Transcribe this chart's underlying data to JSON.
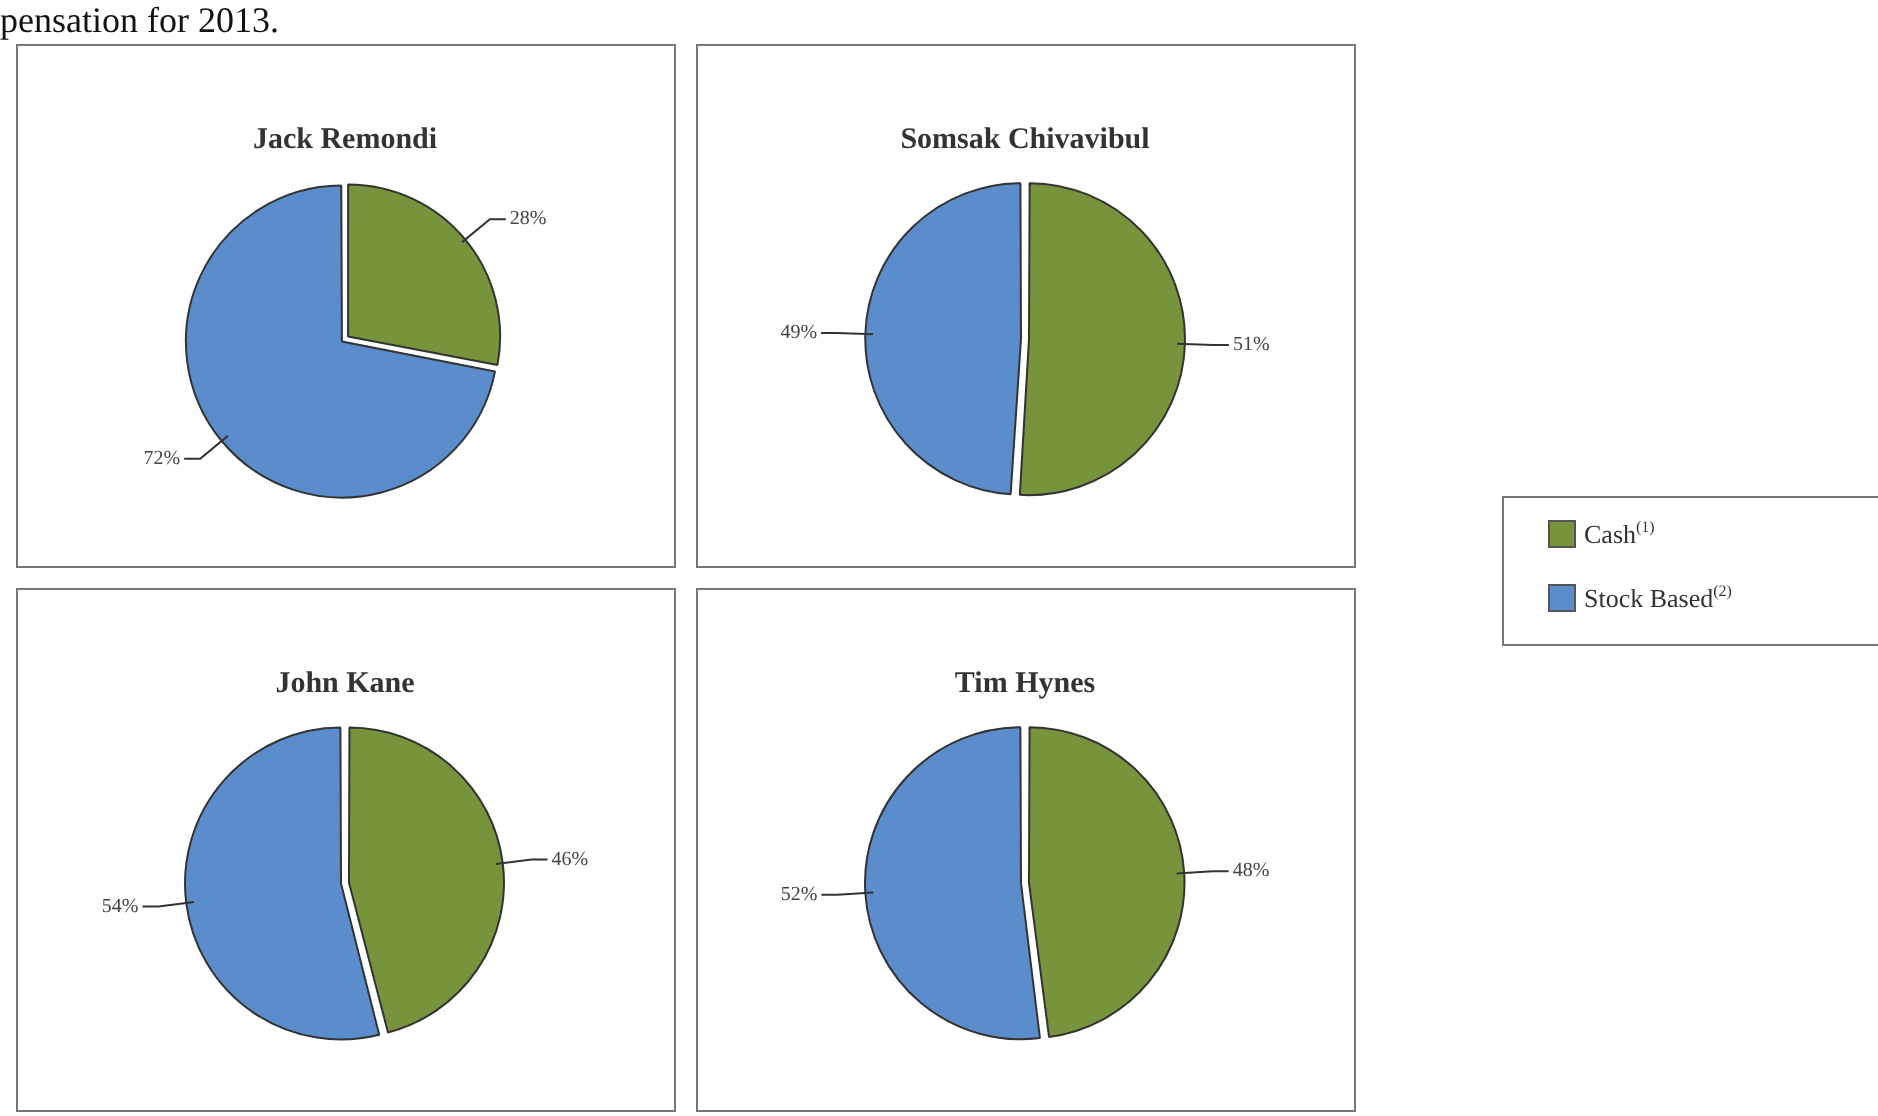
{
  "chart_data": [
    {
      "type": "pie",
      "title": "Jack Remondi",
      "categories": [
        null,
        null
      ],
      "values": [
        28,
        72
      ],
      "colors": [
        "#77933c",
        "#5b8ccb"
      ],
      "value_labels": [
        "28%",
        "72%"
      ],
      "annotations": [
        "pensation for 2013."
      ]
    },
    {
      "type": "pie",
      "title": "Somsak Chivavibul",
      "categories": [
        "Cash$^{(1)}$",
        "Stock Based$^{(2)}$"
      ],
      "values": [
        51,
        49
      ],
      "colors": [
        "#77933c",
        "#5b8ccb"
      ],
      "value_labels": [
        "51%",
        "49%"
      ],
      "legend": "right"
    },
    {
      "type": "pie",
      "title": "John Kane",
      "categories": [
        null,
        null
      ],
      "values": [
        46,
        54
      ],
      "colors": [
        "#77933c",
        "#5b8ccb"
      ],
      "value_labels": [
        "46%",
        "54%"
      ]
    },
    {
      "type": "pie",
      "title": "Tim Hynes",
      "categories": [
        null,
        null
      ],
      "values": [
        48,
        52
      ],
      "colors": [
        "#77933c",
        "#5b8ccb"
      ],
      "value_labels": [
        "48%",
        "52%"
      ]
    }
  ]
}
